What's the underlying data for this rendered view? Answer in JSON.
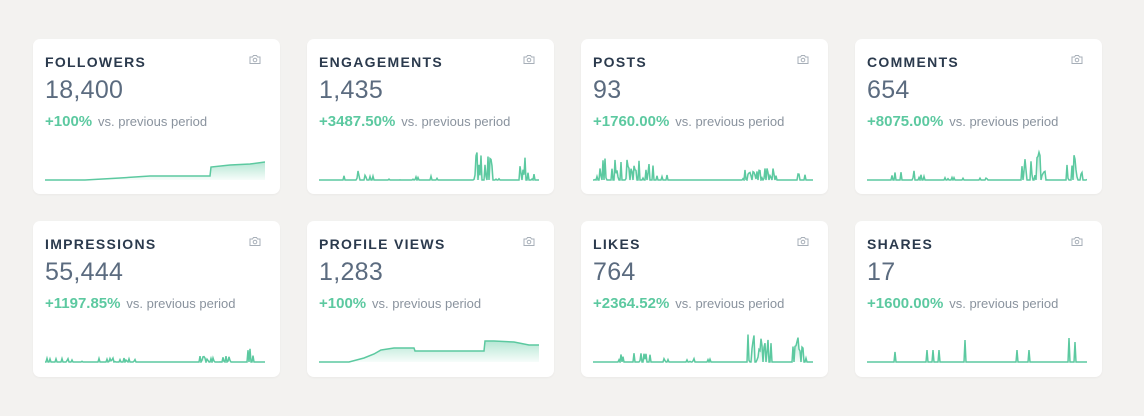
{
  "vs_text": "vs. previous period",
  "colors": {
    "accent": "#5cc9a0",
    "title": "#2b3a4d",
    "value": "#5b6b7f",
    "muted": "#8a939e",
    "background": "#f3f2f0"
  },
  "icon": "camera-icon",
  "cards": [
    {
      "title": "FOLLOWERS",
      "value": "18,400",
      "change": "+100%",
      "shape": "step_up_late"
    },
    {
      "title": "ENGAGEMENTS",
      "value": "1,435",
      "change": "+3487.50%",
      "shape": "spiky_late"
    },
    {
      "title": "POSTS",
      "value": "93",
      "change": "+1760.00%",
      "shape": "spiky_spread"
    },
    {
      "title": "COMMENTS",
      "value": "654",
      "change": "+8075.00%",
      "shape": "spiky_late"
    },
    {
      "title": "IMPRESSIONS",
      "value": "55,444",
      "change": "+1197.85%",
      "shape": "spiky_low"
    },
    {
      "title": "PROFILE VIEWS",
      "value": "1,283",
      "change": "+100%",
      "shape": "step_up_mid"
    },
    {
      "title": "LIKES",
      "value": "764",
      "change": "+2364.52%",
      "shape": "spiky_late"
    },
    {
      "title": "SHARES",
      "value": "17",
      "change": "+1600.00%",
      "shape": "sparse_spikes"
    }
  ]
}
